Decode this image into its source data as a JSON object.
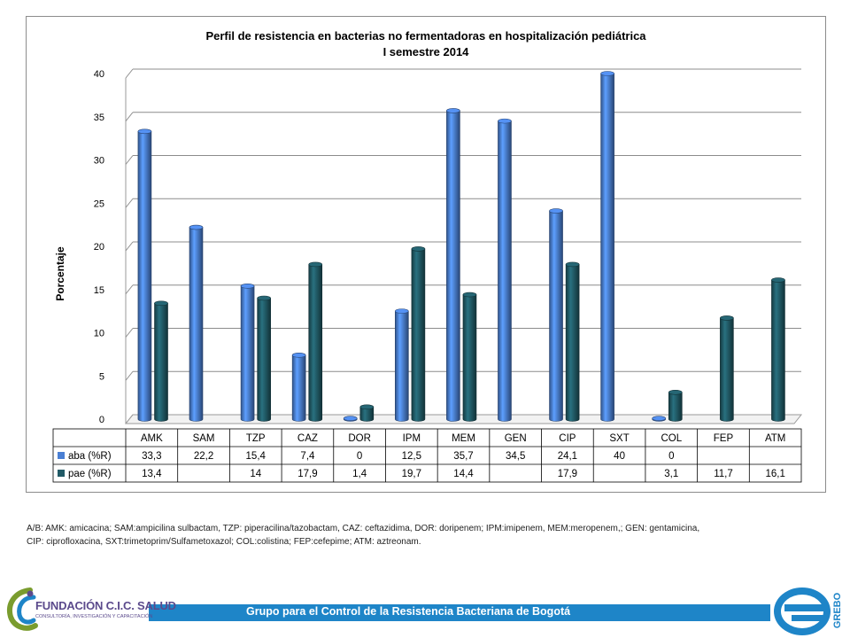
{
  "chart_data": {
    "type": "bar",
    "title": "Perfil de resistencia en bacterias no fermentadoras en hospitalización pediátrica",
    "subtitle": "I semestre 2014",
    "ylabel": "Porcentaje",
    "xlabel": "",
    "ylim": [
      0,
      40
    ],
    "yticks": [
      "0",
      "5",
      "10",
      "15",
      "20",
      "25",
      "30",
      "35",
      "40"
    ],
    "grid": true,
    "style": "3d-cylinder",
    "categories": [
      "AMK",
      "SAM",
      "TZP",
      "CAZ",
      "DOR",
      "IPM",
      "MEM",
      "GEN",
      "CIP",
      "SXT",
      "COL",
      "FEP",
      "ATM"
    ],
    "series": [
      {
        "name": "aba (%R)",
        "color": "#4a7fd4",
        "values": [
          33.3,
          22.2,
          15.4,
          7.4,
          0,
          12.5,
          35.7,
          34.5,
          24.1,
          40,
          0,
          null,
          null
        ],
        "labels": [
          "33,3",
          "22,2",
          "15,4",
          "7,4",
          "0",
          "12,5",
          "35,7",
          "34,5",
          "24,1",
          "40",
          "0",
          "",
          ""
        ]
      },
      {
        "name": "pae (%R)",
        "color": "#215a66",
        "values": [
          13.4,
          null,
          14,
          17.9,
          1.4,
          19.7,
          14.4,
          null,
          17.9,
          null,
          3.1,
          11.7,
          16.1
        ],
        "labels": [
          "13,4",
          "",
          "14",
          "17,9",
          "1,4",
          "19,7",
          "14,4",
          "",
          "17,9",
          "",
          "3,1",
          "11,7",
          "16,1"
        ]
      }
    ],
    "legend": "data-table"
  },
  "footnote": {
    "line1": "A/B: AMK: amicacina; SAM:ampicilina sulbactam, TZP: piperacilina/tazobactam, CAZ: ceftazidima, DOR: doripenem;  IPM:imipenem, MEM:meropenem,; GEN: gentamicina,",
    "line2": "CIP: ciprofloxacina, SXT:trimetoprim/Sulfametoxazol; COL:colistina; FEP:cefepime; ATM: aztreonam."
  },
  "footer": {
    "banner_text": "Grupo para el Control de la Resistencia Bacteriana de Bogotá",
    "bar_color": "#1e85c8",
    "logo_left_name": "FUNDACIÓN C.I.C. SALUD",
    "logo_left_sub": "CONSULTORÍA, INVESTIGACIÓN Y CAPACITACIÓN",
    "logo_right_text": "GREBO"
  }
}
